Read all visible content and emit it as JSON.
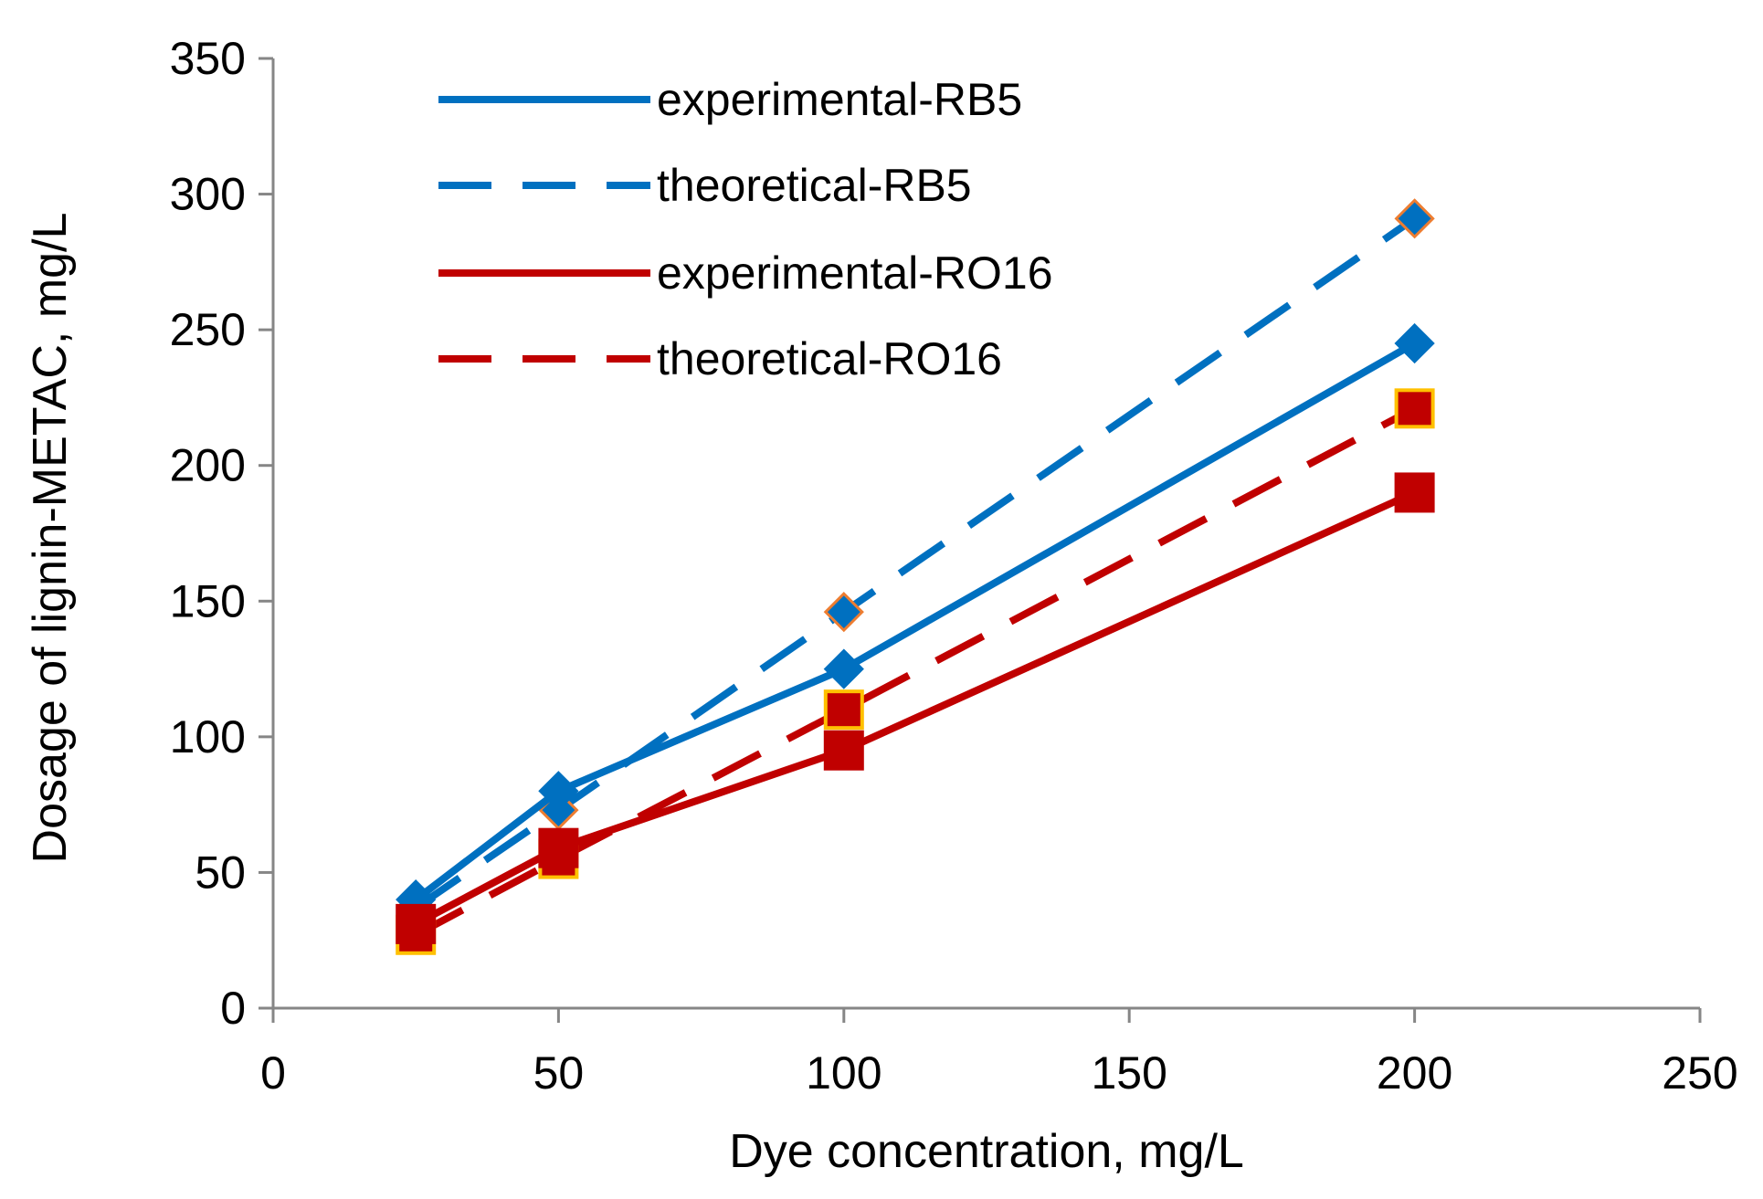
{
  "chart_data": {
    "type": "line",
    "title": "",
    "xlabel": "Dye concentration, mg/L",
    "ylabel": "Dosage of lignin-METAC, mg/L",
    "xlim": [
      0,
      250
    ],
    "ylim": [
      0,
      350
    ],
    "xticks": [
      0,
      50,
      100,
      150,
      200,
      250
    ],
    "yticks": [
      0,
      50,
      100,
      150,
      200,
      250,
      300,
      350
    ],
    "grid": false,
    "legend_position": "top-left",
    "series": [
      {
        "name": "experimental-RB5",
        "x": [
          25,
          50,
          100,
          200
        ],
        "y": [
          40,
          80,
          125,
          245
        ],
        "color": "#0070C0",
        "dash": "solid",
        "marker": "diamond",
        "marker_fill": "#0070C0",
        "marker_edge": "#0070C0"
      },
      {
        "name": "theoretical-RB5",
        "x": [
          25,
          50,
          100,
          200
        ],
        "y": [
          37,
          73,
          146,
          291
        ],
        "color": "#0070C0",
        "dash": "dashed",
        "marker": "diamond",
        "marker_fill": "#0070C0",
        "marker_edge": "#ED7D31"
      },
      {
        "name": "experimental-RO16",
        "x": [
          25,
          50,
          100,
          200
        ],
        "y": [
          31,
          59,
          95,
          190
        ],
        "color": "#C00000",
        "dash": "solid",
        "marker": "square",
        "marker_fill": "#C00000",
        "marker_edge": "#C00000"
      },
      {
        "name": "theoretical-RO16",
        "x": [
          25,
          50,
          100,
          200
        ],
        "y": [
          27,
          55,
          110,
          221
        ],
        "color": "#C00000",
        "dash": "dashed",
        "marker": "square",
        "marker_fill": "#C00000",
        "marker_edge": "#FFC000"
      }
    ]
  }
}
